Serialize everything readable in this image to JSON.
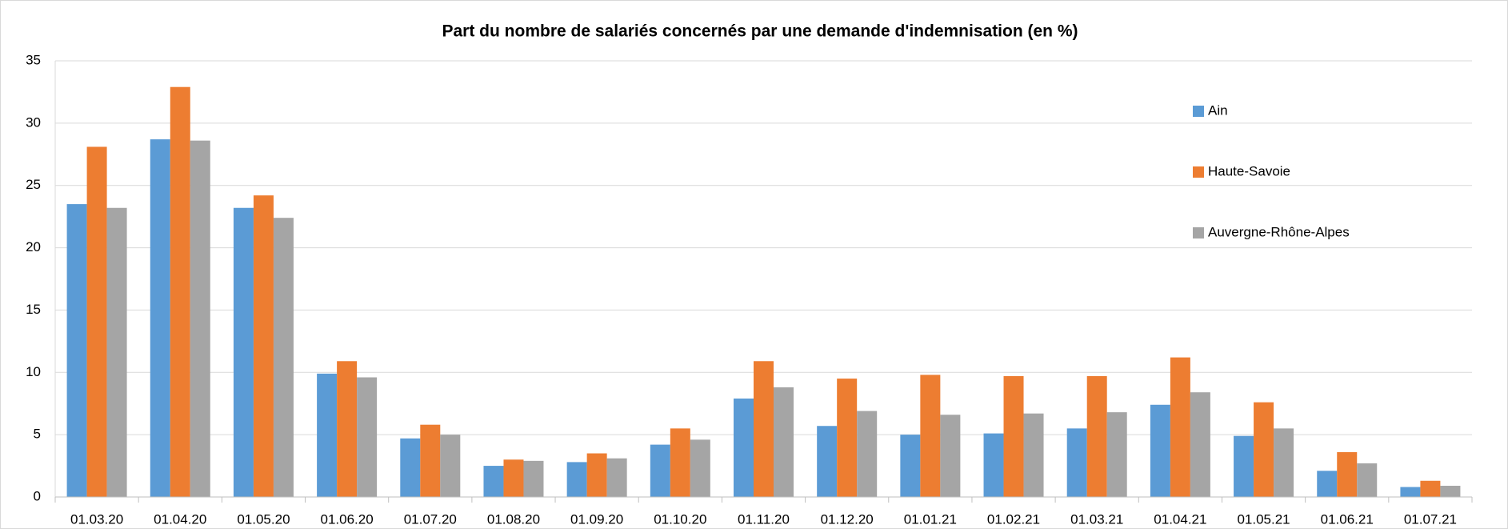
{
  "chart_data": {
    "type": "bar",
    "title": "Part du nombre de salariés concernés par une demande d'indemnisation (en %)",
    "categories": [
      "01.03.20",
      "01.04.20",
      "01.05.20",
      "01.06.20",
      "01.07.20",
      "01.08.20",
      "01.09.20",
      "01.10.20",
      "01.11.20",
      "01.12.20",
      "01.01.21",
      "01.02.21",
      "01.03.21",
      "01.04.21",
      "01.05.21",
      "01.06.21",
      "01.07.21"
    ],
    "series": [
      {
        "name": "Ain",
        "color": "#5b9bd5",
        "values": [
          23.5,
          28.7,
          23.2,
          9.9,
          4.7,
          2.5,
          2.8,
          4.2,
          7.9,
          5.7,
          5.0,
          5.1,
          5.5,
          7.4,
          4.9,
          2.1,
          0.8
        ]
      },
      {
        "name": "Haute-Savoie",
        "color": "#ed7d31",
        "values": [
          28.1,
          32.9,
          24.2,
          10.9,
          5.8,
          3.0,
          3.5,
          5.5,
          10.9,
          9.5,
          9.8,
          9.7,
          9.7,
          11.2,
          7.6,
          3.6,
          1.3
        ]
      },
      {
        "name": "Auvergne-Rhône-Alpes",
        "color": "#a5a5a5",
        "values": [
          23.2,
          28.6,
          22.4,
          9.6,
          5.0,
          2.9,
          3.1,
          4.6,
          8.8,
          6.9,
          6.6,
          6.7,
          6.8,
          8.4,
          5.5,
          2.7,
          0.9
        ]
      }
    ],
    "ylim": [
      0,
      35
    ],
    "yticks": [
      0,
      5,
      10,
      15,
      20,
      25,
      30,
      35
    ],
    "grid": true,
    "legend": "right"
  }
}
